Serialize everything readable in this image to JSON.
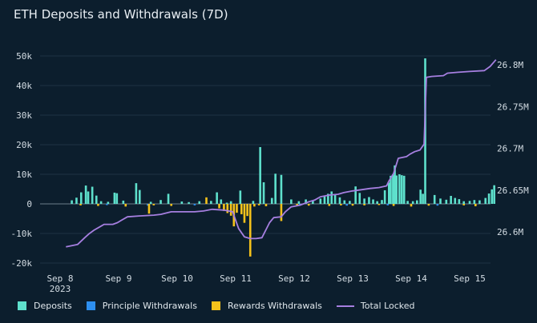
{
  "title": "ETH Deposits and Withdrawals (7D)",
  "colors": {
    "background": "#0c1e2d",
    "deposits": "#5ee0cc",
    "principle": "#2d8ff0",
    "rewards": "#f5c21b",
    "total_locked": "#a67fe0",
    "grid": "#1e3344"
  },
  "chart_data": {
    "type": "bar+line",
    "x_ticks": [
      "Sep 8\n2023",
      "Sep 9",
      "Sep 10",
      "Sep 11",
      "Sep 12",
      "Sep 13",
      "Sep 14",
      "Sep 15"
    ],
    "y_left": {
      "ticks": [
        "50k",
        "40k",
        "30k",
        "20k",
        "10k",
        "0",
        "-10k",
        "-20k"
      ],
      "range": [
        -20000,
        50000
      ]
    },
    "y_right": {
      "ticks": [
        "26.8M",
        "26.75M",
        "26.7M",
        "26.65M",
        "26.6M"
      ],
      "range": [
        26.57,
        26.81
      ]
    },
    "series": [
      {
        "name": "Deposits",
        "kind": "bar",
        "values": [
          [
            8.2,
            1200
          ],
          [
            8.28,
            2100
          ],
          [
            8.36,
            3900
          ],
          [
            8.44,
            6200
          ],
          [
            8.48,
            4200
          ],
          [
            8.55,
            5800
          ],
          [
            8.62,
            2800
          ],
          [
            8.7,
            900
          ],
          [
            8.82,
            700
          ],
          [
            8.93,
            3800
          ],
          [
            8.97,
            3600
          ],
          [
            9.08,
            1100
          ],
          [
            9.3,
            7000
          ],
          [
            9.36,
            4700
          ],
          [
            9.55,
            700
          ],
          [
            9.72,
            1300
          ],
          [
            9.85,
            3400
          ],
          [
            10.08,
            800
          ],
          [
            10.2,
            600
          ],
          [
            10.38,
            900
          ],
          [
            10.58,
            1000
          ],
          [
            10.68,
            3900
          ],
          [
            10.75,
            1500
          ],
          [
            10.85,
            400
          ],
          [
            10.92,
            900
          ],
          [
            11.08,
            4500
          ],
          [
            11.3,
            1000
          ],
          [
            11.42,
            19200
          ],
          [
            11.48,
            7300
          ],
          [
            11.62,
            2000
          ],
          [
            11.68,
            10200
          ],
          [
            11.78,
            9800
          ],
          [
            11.95,
            1500
          ],
          [
            12.08,
            900
          ],
          [
            12.2,
            1500
          ],
          [
            12.32,
            1000
          ],
          [
            12.45,
            1800
          ],
          [
            12.52,
            2500
          ],
          [
            12.58,
            3400
          ],
          [
            12.64,
            4200
          ],
          [
            12.7,
            3000
          ],
          [
            12.78,
            2200
          ],
          [
            12.86,
            1200
          ],
          [
            12.95,
            1000
          ],
          [
            13.05,
            5900
          ],
          [
            13.12,
            3700
          ],
          [
            13.2,
            1800
          ],
          [
            13.28,
            2300
          ],
          [
            13.35,
            1500
          ],
          [
            13.42,
            900
          ],
          [
            13.5,
            1300
          ],
          [
            13.55,
            4600
          ],
          [
            13.62,
            7200
          ],
          [
            13.65,
            9500
          ],
          [
            13.69,
            9800
          ],
          [
            13.72,
            13000
          ],
          [
            13.75,
            9600
          ],
          [
            13.8,
            10000
          ],
          [
            13.84,
            9700
          ],
          [
            13.88,
            9500
          ],
          [
            13.94,
            1000
          ],
          [
            14.03,
            900
          ],
          [
            14.1,
            1200
          ],
          [
            14.16,
            4800
          ],
          [
            14.2,
            3400
          ],
          [
            14.24,
            49200
          ],
          [
            14.4,
            3000
          ],
          [
            14.5,
            1800
          ],
          [
            14.6,
            1400
          ],
          [
            14.68,
            2700
          ],
          [
            14.75,
            2000
          ],
          [
            14.82,
            1600
          ],
          [
            14.9,
            900
          ],
          [
            15.0,
            1000
          ],
          [
            15.08,
            1300
          ],
          [
            15.17,
            1200
          ],
          [
            15.27,
            2000
          ],
          [
            15.33,
            3500
          ],
          [
            15.38,
            4900
          ],
          [
            15.42,
            6300
          ]
        ]
      },
      {
        "name": "Principle Withdrawals",
        "kind": "bar",
        "values": [
          [
            8.8,
            -400
          ],
          [
            9.5,
            -600
          ],
          [
            10.3,
            -500
          ],
          [
            11.2,
            -700
          ],
          [
            12.1,
            -500
          ],
          [
            12.9,
            -600
          ],
          [
            13.6,
            -500
          ],
          [
            14.45,
            -600
          ],
          [
            15.1,
            -400
          ]
        ]
      },
      {
        "name": "Rewards Withdrawals",
        "kind": "bar",
        "values": [
          [
            8.35,
            -500
          ],
          [
            8.65,
            -700
          ],
          [
            9.12,
            -900
          ],
          [
            9.52,
            -3300
          ],
          [
            9.6,
            -500
          ],
          [
            9.9,
            -700
          ],
          [
            10.5,
            2200
          ],
          [
            10.72,
            -1500
          ],
          [
            10.8,
            -2400
          ],
          [
            10.86,
            -3100
          ],
          [
            10.92,
            -4000
          ],
          [
            10.97,
            -7600
          ],
          [
            11.02,
            -3000
          ],
          [
            11.1,
            -3500
          ],
          [
            11.15,
            -6400
          ],
          [
            11.2,
            -4100
          ],
          [
            11.25,
            -17800
          ],
          [
            11.32,
            -900
          ],
          [
            11.4,
            -500
          ],
          [
            11.52,
            -800
          ],
          [
            11.78,
            -5800
          ],
          [
            12.05,
            -600
          ],
          [
            12.25,
            -600
          ],
          [
            12.6,
            -700
          ],
          [
            12.8,
            -500
          ],
          [
            13.0,
            -600
          ],
          [
            13.2,
            -500
          ],
          [
            13.45,
            -400
          ],
          [
            13.7,
            -700
          ],
          [
            14.0,
            -900
          ],
          [
            14.3,
            -600
          ],
          [
            14.9,
            -500
          ],
          [
            15.1,
            -800
          ]
        ]
      },
      {
        "name": "Total Locked",
        "kind": "line",
        "axis": "right",
        "values": [
          [
            8.1,
            26.582
          ],
          [
            8.3,
            26.585
          ],
          [
            8.42,
            26.593
          ],
          [
            8.5,
            26.598
          ],
          [
            8.58,
            26.602
          ],
          [
            8.68,
            26.606
          ],
          [
            8.75,
            26.609
          ],
          [
            8.9,
            26.609
          ],
          [
            8.98,
            26.611
          ],
          [
            9.05,
            26.614
          ],
          [
            9.15,
            26.618
          ],
          [
            9.35,
            26.619
          ],
          [
            9.6,
            26.62
          ],
          [
            9.72,
            26.621
          ],
          [
            9.9,
            26.624
          ],
          [
            10.3,
            26.624
          ],
          [
            10.45,
            26.625
          ],
          [
            10.6,
            26.627
          ],
          [
            10.8,
            26.626
          ],
          [
            10.95,
            26.624
          ],
          [
            11.05,
            26.604
          ],
          [
            11.15,
            26.594
          ],
          [
            11.25,
            26.592
          ],
          [
            11.35,
            26.592
          ],
          [
            11.45,
            26.593
          ],
          [
            11.58,
            26.611
          ],
          [
            11.65,
            26.617
          ],
          [
            11.78,
            26.618
          ],
          [
            11.85,
            26.624
          ],
          [
            11.95,
            26.63
          ],
          [
            12.1,
            26.632
          ],
          [
            12.25,
            26.636
          ],
          [
            12.35,
            26.638
          ],
          [
            12.45,
            26.642
          ],
          [
            12.6,
            26.644
          ],
          [
            12.75,
            26.645
          ],
          [
            12.85,
            26.647
          ],
          [
            13.0,
            26.649
          ],
          [
            13.1,
            26.65
          ],
          [
            13.3,
            26.652
          ],
          [
            13.45,
            26.653
          ],
          [
            13.58,
            26.655
          ],
          [
            13.62,
            26.661
          ],
          [
            13.7,
            26.67
          ],
          [
            13.78,
            26.688
          ],
          [
            13.92,
            26.69
          ],
          [
            13.98,
            26.693
          ],
          [
            14.06,
            26.696
          ],
          [
            14.15,
            26.698
          ],
          [
            14.22,
            26.705
          ],
          [
            14.26,
            26.785
          ],
          [
            14.35,
            26.786
          ],
          [
            14.55,
            26.787
          ],
          [
            14.62,
            26.79
          ],
          [
            14.8,
            26.791
          ],
          [
            15.0,
            26.792
          ],
          [
            15.25,
            26.793
          ],
          [
            15.35,
            26.798
          ],
          [
            15.45,
            26.806
          ]
        ]
      }
    ],
    "grid": true,
    "legend_position": "bottom"
  },
  "legend": [
    {
      "label": "Deposits",
      "color": "#5ee0cc",
      "shape": "square"
    },
    {
      "label": "Principle Withdrawals",
      "color": "#2d8ff0",
      "shape": "square"
    },
    {
      "label": "Rewards Withdrawals",
      "color": "#f5c21b",
      "shape": "square"
    },
    {
      "label": "Total Locked",
      "color": "#a67fe0",
      "shape": "line"
    }
  ]
}
